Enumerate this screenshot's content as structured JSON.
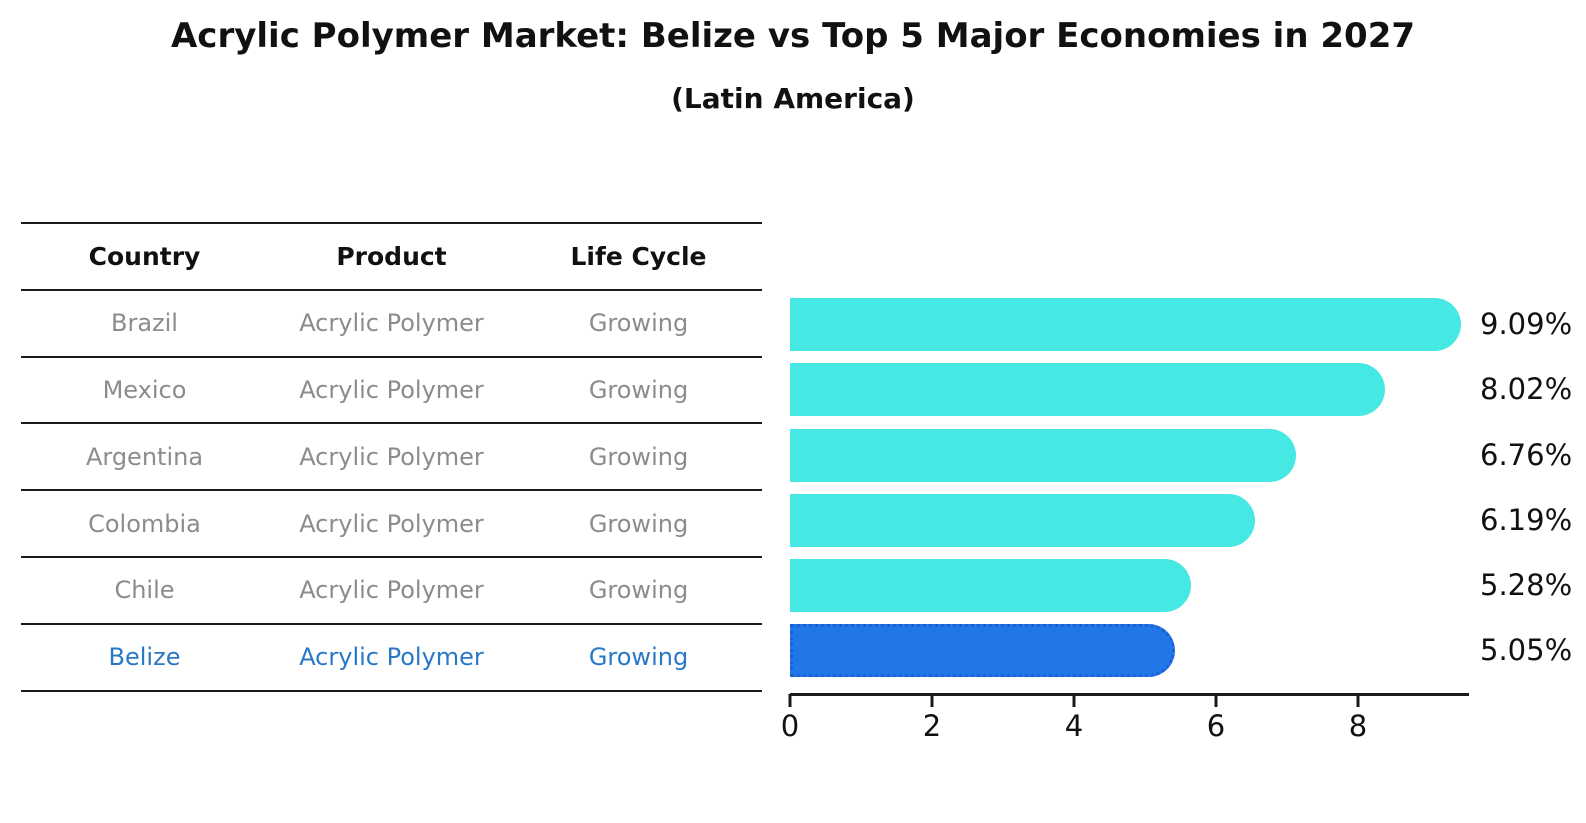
{
  "title": "Acrylic Polymer Market: Belize vs Top 5 Major Economies in 2027",
  "subtitle": "(Latin America)",
  "colors": {
    "bar": "#45e8e2",
    "highlight_bar": "#2176e8",
    "highlight_bar_border": "#1b60d4",
    "highlight_text": "#2978c8",
    "table_text": "#8c8c8c",
    "heading_text": "#111111",
    "axis": "#1a1a1a"
  },
  "table": {
    "headers": [
      "Country",
      "Product",
      "Life Cycle"
    ],
    "rows": [
      {
        "country": "Brazil",
        "product": "Acrylic Polymer",
        "life_cycle": "Growing",
        "highlight": false
      },
      {
        "country": "Mexico",
        "product": "Acrylic Polymer",
        "life_cycle": "Growing",
        "highlight": false
      },
      {
        "country": "Argentina",
        "product": "Acrylic Polymer",
        "life_cycle": "Growing",
        "highlight": false
      },
      {
        "country": "Colombia",
        "product": "Acrylic Polymer",
        "life_cycle": "Growing",
        "highlight": false
      },
      {
        "country": "Chile",
        "product": "Acrylic Polymer",
        "life_cycle": "Growing",
        "highlight": false
      },
      {
        "country": "Belize",
        "product": "Acrylic Polymer",
        "life_cycle": "Growing",
        "highlight": true
      }
    ]
  },
  "chart_data": {
    "type": "bar",
    "orientation": "horizontal",
    "title": "Acrylic Polymer Market: Belize vs Top 5 Major Economies in 2027",
    "subtitle": "(Latin America)",
    "categories": [
      "Brazil",
      "Mexico",
      "Argentina",
      "Colombia",
      "Chile",
      "Belize"
    ],
    "values": [
      9.09,
      8.02,
      6.76,
      6.19,
      5.28,
      5.05
    ],
    "value_labels": [
      "9.09%",
      "8.02%",
      "6.76%",
      "6.19%",
      "5.28%",
      "5.05%"
    ],
    "unit": "%",
    "highlight_index": 5,
    "xticks": [
      0,
      2,
      4,
      6,
      8
    ],
    "xlim": [
      0,
      9.55
    ],
    "grid": false,
    "legend": false
  }
}
